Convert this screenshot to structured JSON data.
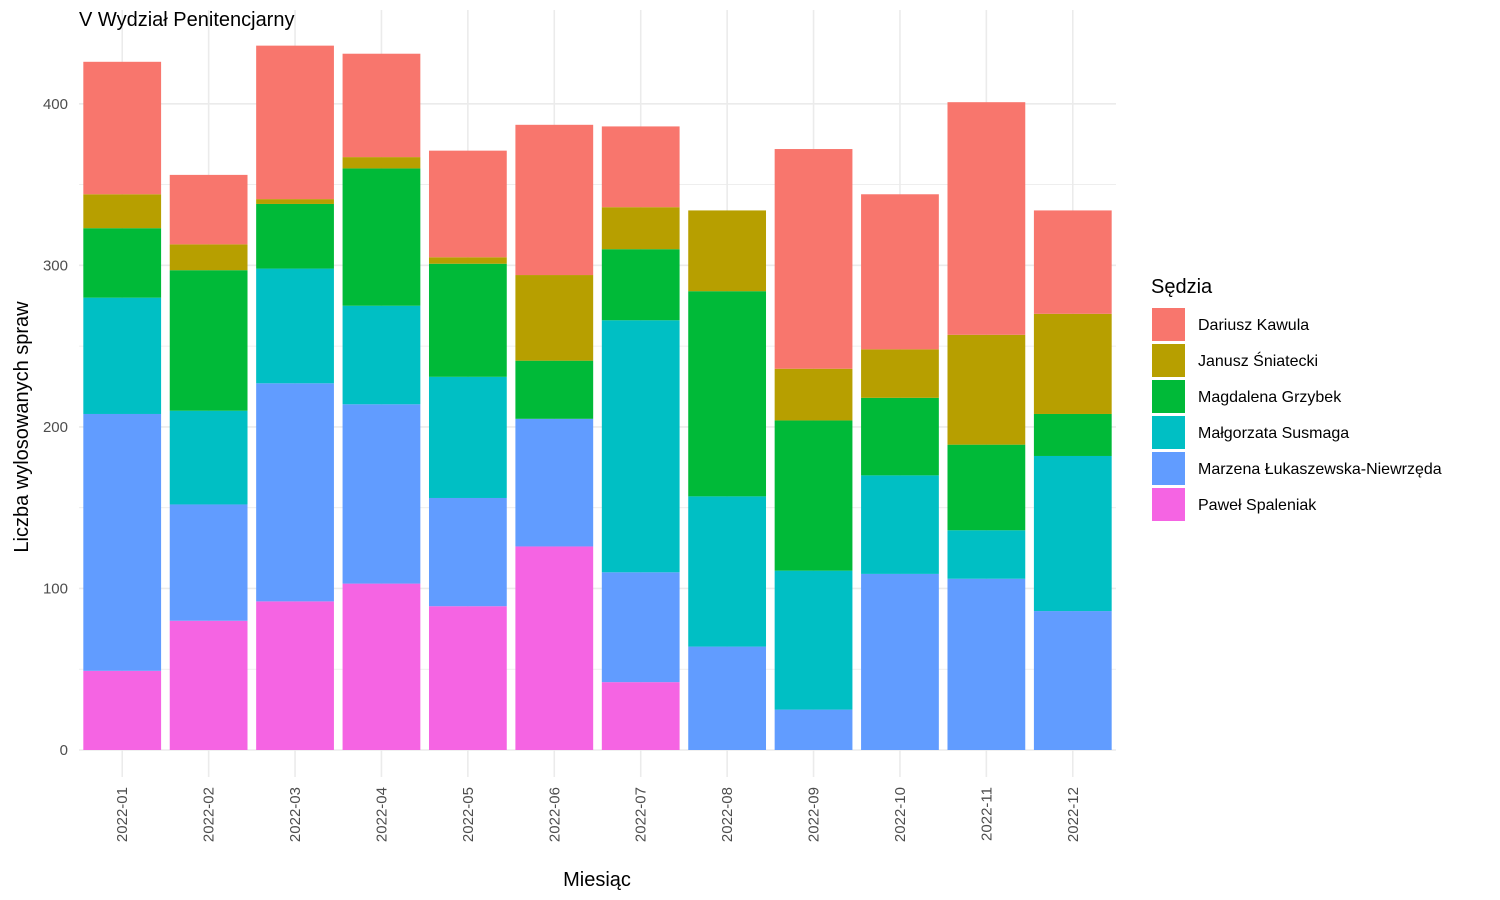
{
  "chart_data": {
    "type": "bar",
    "stacked": true,
    "title": "V Wydział Penitencjarny",
    "xlabel": "Miesiąc",
    "ylabel": "Liczba wylosowanych spraw",
    "ylim": [
      0,
      440
    ],
    "yticks": [
      0,
      100,
      200,
      300,
      400
    ],
    "grid": true,
    "legend_title": "Sędzia",
    "legend_position": "right",
    "categories": [
      "2022-01",
      "2022-02",
      "2022-03",
      "2022-04",
      "2022-05",
      "2022-06",
      "2022-07",
      "2022-08",
      "2022-09",
      "2022-10",
      "2022-11",
      "2022-12"
    ],
    "series": [
      {
        "name": "Paweł Spaleniak",
        "color": "#F564E3",
        "values": [
          49,
          80,
          92,
          103,
          89,
          126,
          42,
          0,
          0,
          0,
          0,
          0
        ]
      },
      {
        "name": "Marzena Łukaszewska-Niewrzęda",
        "color": "#619CFF",
        "values": [
          159,
          72,
          135,
          111,
          67,
          79,
          68,
          64,
          25,
          109,
          106,
          86
        ]
      },
      {
        "name": "Małgorzata Susmaga",
        "color": "#00BFC4",
        "values": [
          72,
          58,
          71,
          61,
          75,
          0,
          156,
          93,
          86,
          61,
          30,
          96
        ]
      },
      {
        "name": "Magdalena Grzybek",
        "color": "#00BA38",
        "values": [
          43,
          87,
          40,
          85,
          70,
          36,
          44,
          127,
          93,
          48,
          53,
          26
        ]
      },
      {
        "name": "Janusz Śniatecki",
        "color": "#B79F00",
        "values": [
          21,
          16,
          3,
          7,
          4,
          53,
          26,
          50,
          32,
          30,
          68,
          62
        ]
      },
      {
        "name": "Dariusz Kawula",
        "color": "#F8766D",
        "values": [
          82,
          43,
          95,
          64,
          66,
          93,
          50,
          0,
          136,
          96,
          144,
          64
        ]
      }
    ],
    "legend_order": [
      "Dariusz Kawula",
      "Janusz Śniatecki",
      "Magdalena Grzybek",
      "Małgorzata Susmaga",
      "Marzena Łukaszewska-Niewrzęda",
      "Paweł Spaleniak"
    ]
  }
}
